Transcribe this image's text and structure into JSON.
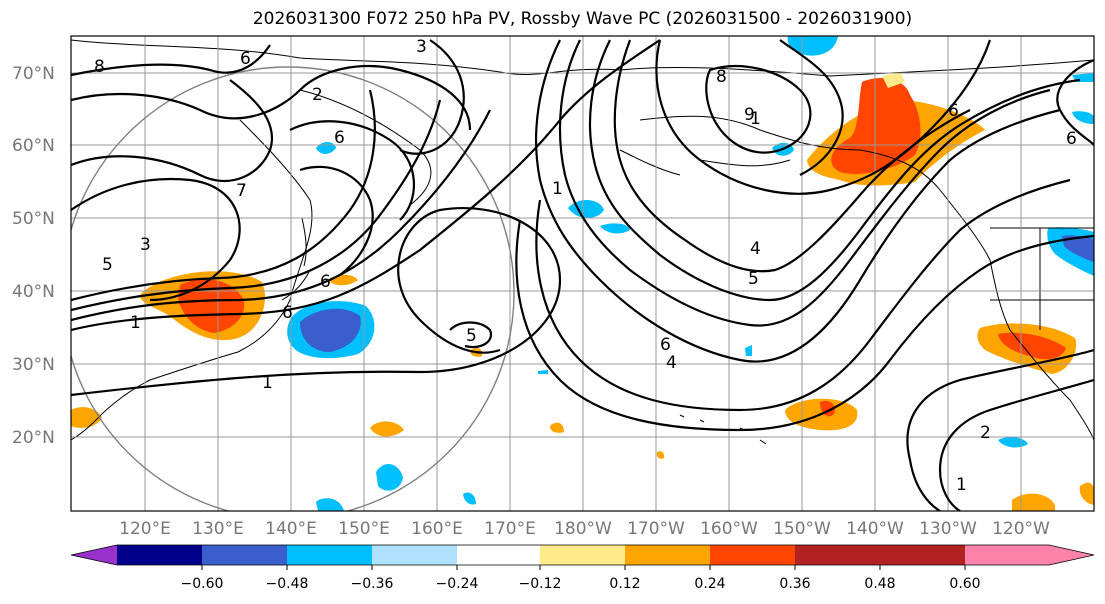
{
  "title": "2026031300 F072 250 hPa PV, Rossby Wave PC (2026031500 - 2026031900)",
  "lat_labels": [
    "70°N",
    "60°N",
    "50°N",
    "40°N",
    "30°N",
    "20°N"
  ],
  "lon_labels": [
    "120°E",
    "130°E",
    "140°E",
    "150°E",
    "160°E",
    "170°E",
    "180°W",
    "170°W",
    "160°W",
    "150°W",
    "140°W",
    "130°W",
    "120°W"
  ],
  "colorbar": {
    "ticks": [
      "−0.60",
      "−0.48",
      "−0.36",
      "−0.24",
      "−0.12",
      "0.12",
      "0.24",
      "0.36",
      "0.48",
      "0.60"
    ],
    "colors": [
      "#9932cc",
      "#00008b",
      "#3a5fcd",
      "#00bfff",
      "#b0e2ff",
      "#ffffff",
      "#ffeb8a",
      "#ffa500",
      "#ff4500",
      "#b22222",
      "#ff82ab"
    ]
  },
  "contour_labels": [
    "3",
    "8",
    "6",
    "2",
    "6",
    "7",
    "3",
    "5",
    "1",
    "6",
    "6",
    "1",
    "5",
    "1",
    "8",
    "9",
    "6",
    "6",
    "1",
    "4",
    "5",
    "6",
    "4",
    "2",
    "1"
  ],
  "colors": {
    "text": "#000000",
    "axis_label": "#777777",
    "grid": "#999999",
    "contour": "#000000"
  }
}
